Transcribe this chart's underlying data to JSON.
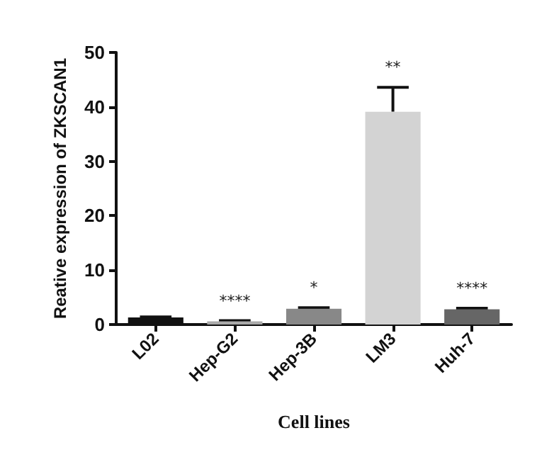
{
  "chart_data": {
    "type": "bar",
    "xlabel": "Cell lines",
    "ylabel": "Reative expression of ZKSCAN1",
    "categories": [
      "L02",
      "Hep-G2",
      "Hep-3B",
      "LM3",
      "Huh-7"
    ],
    "values": [
      1.3,
      0.6,
      2.9,
      39.1,
      2.8
    ],
    "colors": [
      "#111111",
      "#aaaaaa",
      "#888888",
      "#d3d3d3",
      "#666666"
    ],
    "errors": [
      0.1,
      0.1,
      0.2,
      4.5,
      0.2
    ],
    "ylim": [
      0,
      50
    ],
    "yticks": [
      0,
      10,
      20,
      30,
      40,
      50
    ],
    "value_labels": [
      null,
      "****",
      "*",
      "**",
      "****"
    ],
    "grid": false
  }
}
